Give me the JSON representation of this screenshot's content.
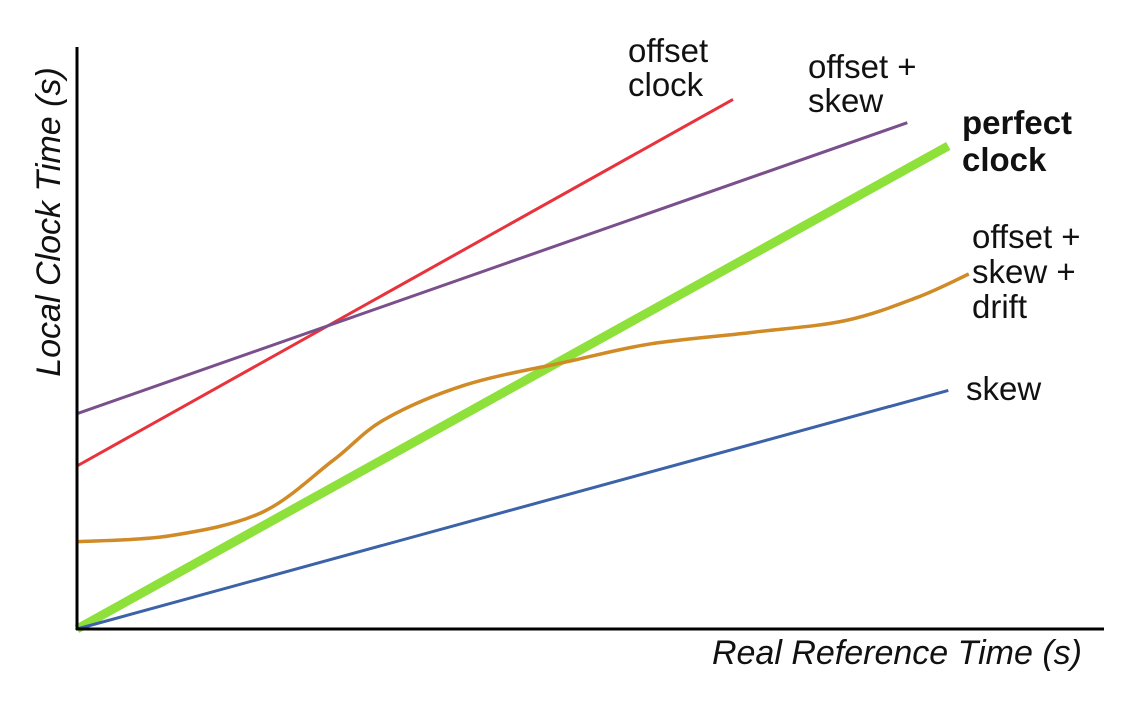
{
  "chart_data": {
    "type": "line",
    "title": "",
    "xlabel": "Real Reference Time (s)",
    "ylabel": "Local Clock Time (s)",
    "xlim": [
      0,
      1
    ],
    "ylim": [
      0,
      1
    ],
    "tick_labels": "none",
    "grid": false,
    "legend": "inline labels at line ends",
    "series": [
      {
        "name": "offset clock",
        "label_lines": [
          "offset",
          "clock"
        ],
        "bold": false,
        "color": "#e8323c",
        "x": [
          0,
          0.64
        ],
        "y": [
          0.28,
          0.91
        ]
      },
      {
        "name": "offset + skew",
        "label_lines": [
          "offset +",
          "skew"
        ],
        "bold": false,
        "color": "#7a4f8c",
        "x": [
          0,
          0.81
        ],
        "y": [
          0.37,
          0.87
        ]
      },
      {
        "name": "perfect clock",
        "label_lines": [
          "perfect",
          "clock"
        ],
        "bold": true,
        "color": "#8ee03a",
        "x": [
          0,
          0.85
        ],
        "y": [
          0,
          0.83
        ]
      },
      {
        "name": "offset + skew + drift",
        "label_lines": [
          "offset +",
          "skew +",
          "drift"
        ],
        "bold": false,
        "color": "#d08a26",
        "x": [
          0,
          0.09,
          0.18,
          0.25,
          0.3,
          0.38,
          0.48,
          0.56,
          0.66,
          0.75,
          0.82,
          0.87
        ],
        "y": [
          0.15,
          0.16,
          0.2,
          0.29,
          0.36,
          0.42,
          0.46,
          0.49,
          0.51,
          0.53,
          0.57,
          0.61
        ]
      },
      {
        "name": "skew",
        "label_lines": [
          "skew"
        ],
        "bold": false,
        "color": "#3c63a8",
        "x": [
          0,
          0.85
        ],
        "y": [
          0,
          0.41
        ]
      }
    ]
  }
}
